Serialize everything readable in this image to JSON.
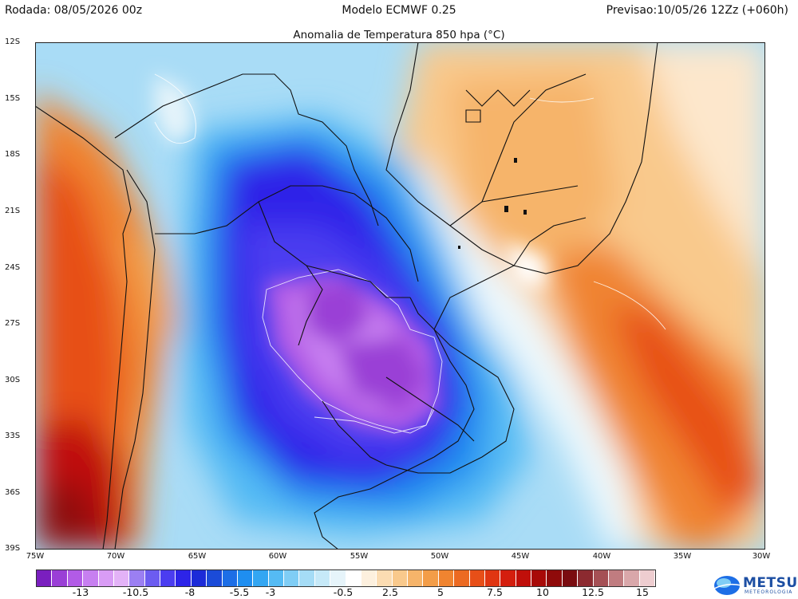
{
  "header": {
    "run": "Rodada: 08/05/2026 00z",
    "model": "Modelo ECMWF 0.25",
    "forecast": "Previsao:10/05/26 12Zz (+060h)"
  },
  "title": "Anomalia de Temperatura 850 hpa (°C)",
  "map": {
    "lat_labels": [
      "12S",
      "15S",
      "18S",
      "21S",
      "24S",
      "27S",
      "30S",
      "33S",
      "36S",
      "39S"
    ],
    "lon_labels": [
      "75W",
      "70W",
      "65W",
      "60W",
      "55W",
      "50W",
      "45W",
      "40W",
      "35W",
      "30W"
    ],
    "extent": {
      "lon_min": -75,
      "lon_max": -30,
      "lat_min": -39,
      "lat_max": -12
    }
  },
  "colorbar": {
    "colors": [
      "#7a1fbf",
      "#9a3fd6",
      "#b25be6",
      "#c77ff0",
      "#d99cf5",
      "#e3b2f7",
      "#9b7ff2",
      "#6c5cf0",
      "#4b3df0",
      "#2d24e8",
      "#1c2bd8",
      "#1b4bd8",
      "#1d6ee6",
      "#1f8ef0",
      "#33a6f2",
      "#55bbf4",
      "#7fcdf5",
      "#a5dcf6",
      "#c6e9f8",
      "#e6f4fa",
      "#ffffff",
      "#fdf0de",
      "#fbdcb2",
      "#f9c98c",
      "#f6b46a",
      "#f39d48",
      "#f08430",
      "#ec6a22",
      "#e74f18",
      "#e03612",
      "#d41e0e",
      "#c00f0a",
      "#a80a08",
      "#8f0a0a",
      "#7a0c10",
      "#8c2a30",
      "#a55055",
      "#c07c80",
      "#d9a7aa",
      "#eecdd0"
    ],
    "labels": [
      "-13",
      "-10.5",
      "-8",
      "-5.5",
      "-3",
      "-0.5",
      "2.5",
      "5",
      "7.5",
      "10",
      "12.5",
      "15"
    ]
  },
  "logo": {
    "name": "METSUL",
    "sub": "METEOROLOGIA"
  }
}
